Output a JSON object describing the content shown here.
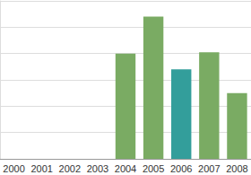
{
  "chart_data": {
    "type": "bar",
    "categories": [
      "2000",
      "2001",
      "2002",
      "2003",
      "2004",
      "2005",
      "2006",
      "2007",
      "2008"
    ],
    "values": [
      null,
      null,
      null,
      null,
      4.0,
      5.4,
      3.4,
      4.05,
      2.5
    ],
    "colors": [
      "#7aab63",
      "#7aab63",
      "#7aab63",
      "#7aab63",
      "#7aab63",
      "#7aab63",
      "#339e9b",
      "#7aab63",
      "#7aab63"
    ],
    "ylim": [
      0,
      6
    ],
    "yticks": [
      0,
      1,
      2,
      3,
      4,
      5,
      6
    ],
    "grid": true,
    "tick_labels": "x"
  }
}
